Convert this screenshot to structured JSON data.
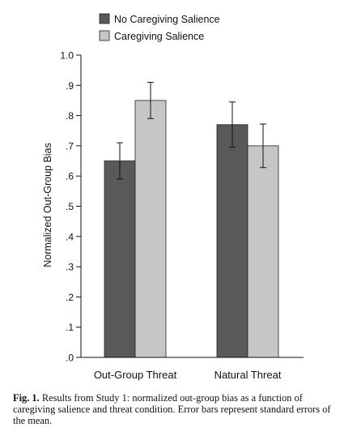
{
  "chart_data": {
    "type": "bar",
    "ylabel": "Normalized Out-Group Bias",
    "xlabel": "",
    "ylim": [
      0,
      1.0
    ],
    "y_ticks": [
      {
        "value": 0.0,
        "label": ".0"
      },
      {
        "value": 0.1,
        "label": ".1"
      },
      {
        "value": 0.2,
        "label": ".2"
      },
      {
        "value": 0.3,
        "label": ".3"
      },
      {
        "value": 0.4,
        "label": ".4"
      },
      {
        "value": 0.5,
        "label": ".5"
      },
      {
        "value": 0.6,
        "label": ".6"
      },
      {
        "value": 0.7,
        "label": ".7"
      },
      {
        "value": 0.8,
        "label": ".8"
      },
      {
        "value": 0.9,
        "label": ".9"
      },
      {
        "value": 1.0,
        "label": "1.0"
      }
    ],
    "categories": [
      "Out-Group Threat",
      "Natural Threat"
    ],
    "series": [
      {
        "name": "No Caregiving Salience",
        "color": "#595959",
        "values": [
          0.65,
          0.77
        ],
        "errors": [
          0.06,
          0.075
        ]
      },
      {
        "name": "Caregiving Salience",
        "color": "#c6c6c6",
        "values": [
          0.85,
          0.7
        ],
        "errors": [
          0.06,
          0.072
        ]
      }
    ],
    "legend": "top-left",
    "grid": false
  },
  "caption": {
    "label": "Fig. 1.",
    "text": "Results from Study 1: normalized out-group bias as a function of caregiving salience and threat condition. Error bars represent standard errors of the mean."
  }
}
